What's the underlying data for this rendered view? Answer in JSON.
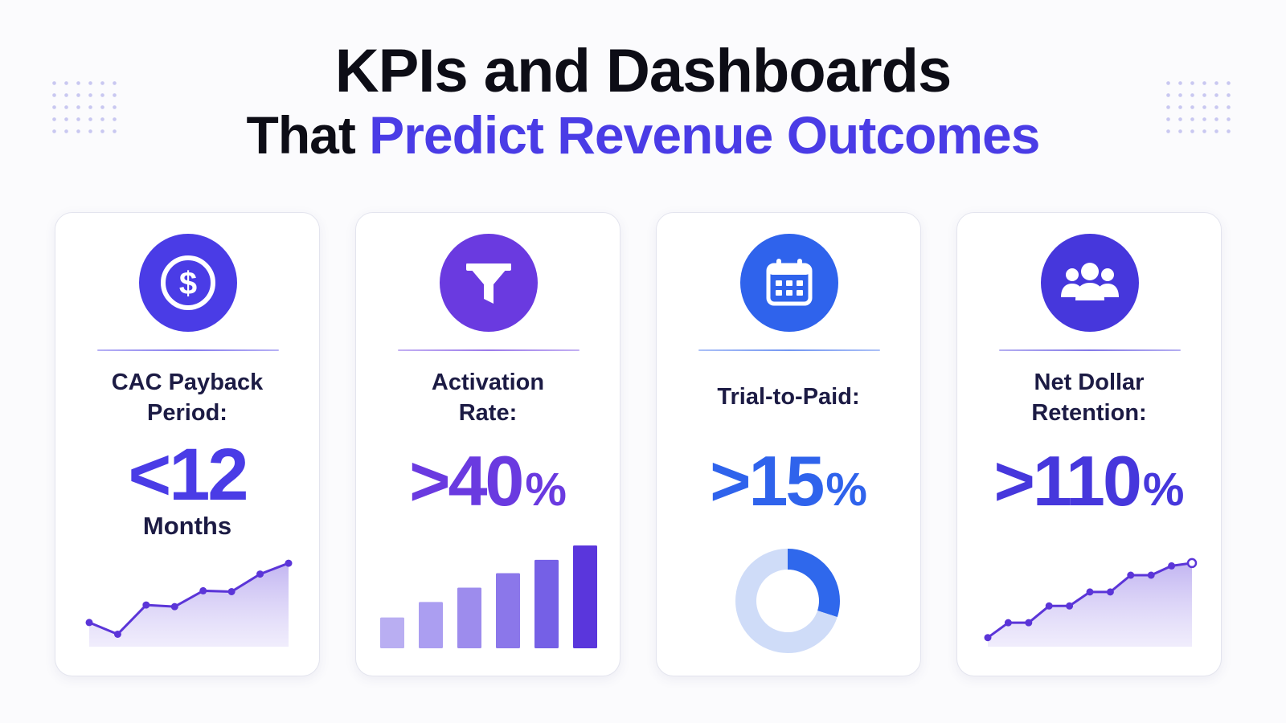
{
  "title": {
    "line1": "KPIs and Dashboards",
    "line2_prefix": "That ",
    "line2_accent": "Predict Revenue Outcomes"
  },
  "colors": {
    "accent": "#4a3ce6",
    "heading": "#0d0d16",
    "label": "#1c1b44"
  },
  "cards": [
    {
      "icon": "dollar-coin-icon",
      "color": "#4a3ce6",
      "label_lines": [
        "CAC Payback",
        "Period:"
      ],
      "value": "<12",
      "unit": "",
      "sub": "Months"
    },
    {
      "icon": "funnel-icon",
      "color": "#6a3ae0",
      "label_lines": [
        "Activation",
        "Rate:"
      ],
      "value": ">40",
      "unit": "%",
      "sub": ""
    },
    {
      "icon": "calendar-icon",
      "color": "#2f63ec",
      "label_lines": [
        "Trial-to-Paid:"
      ],
      "value": ">15",
      "unit": "%",
      "sub": ""
    },
    {
      "icon": "users-group-icon",
      "color": "#4637dc",
      "label_lines": [
        "Net Dollar",
        "Retention:"
      ],
      "value": ">110",
      "unit": "%",
      "sub": ""
    }
  ],
  "chart_data": [
    {
      "type": "line",
      "x": [
        1,
        2,
        3,
        4,
        5,
        6,
        7,
        8
      ],
      "values": [
        27,
        13,
        48,
        46,
        65,
        64,
        85,
        98
      ],
      "title": "",
      "xlabel": "",
      "ylabel": "",
      "ylim": [
        0,
        100
      ],
      "grid": false,
      "area_fill": true,
      "color": "#5b35d8"
    },
    {
      "type": "bar",
      "categories": [
        "1",
        "2",
        "3",
        "4",
        "5",
        "6"
      ],
      "values": [
        30,
        45,
        59,
        73,
        86,
        100
      ],
      "title": "",
      "xlabel": "",
      "ylabel": "",
      "ylim": [
        0,
        100
      ],
      "grid": false,
      "colors": [
        "#b9aef2",
        "#ab9ef1",
        "#9d8ced",
        "#8b77ea",
        "#7560e6",
        "#5a36dc"
      ]
    },
    {
      "type": "pie",
      "donut": true,
      "values": [
        30,
        70
      ],
      "colors": [
        "#2f68ec",
        "#cfdcf8"
      ],
      "title": ""
    },
    {
      "type": "line",
      "x": [
        1,
        2,
        3,
        4,
        5,
        6,
        7,
        8,
        9,
        10,
        11
      ],
      "values": [
        8,
        24,
        24,
        42,
        42,
        57,
        57,
        75,
        75,
        85,
        88
      ],
      "title": "",
      "xlabel": "",
      "ylabel": "",
      "ylim": [
        0,
        100
      ],
      "grid": false,
      "area_fill": true,
      "color": "#5b35d8",
      "last_point_hollow": true
    }
  ]
}
